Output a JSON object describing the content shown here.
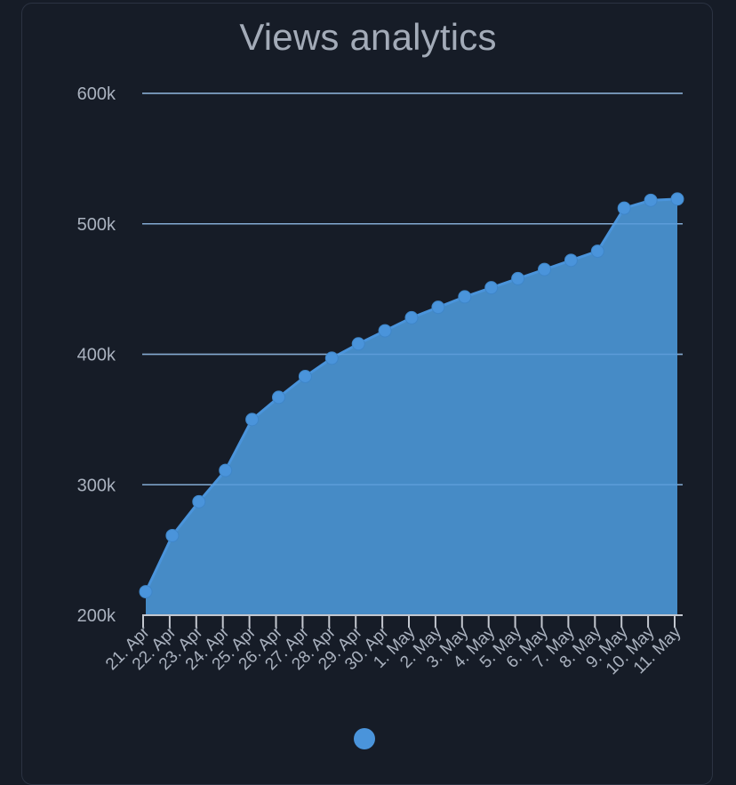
{
  "chart_data": {
    "type": "area",
    "title": "Views analytics",
    "categories": [
      "21. Apr",
      "22. Apr",
      "23. Apr",
      "24. Apr",
      "25. Apr",
      "26. Apr",
      "27. Apr",
      "28. Apr",
      "29. Apr",
      "30. Apr",
      "1. May",
      "2. May",
      "3. May",
      "4. May",
      "5. May",
      "6. May",
      "7. May",
      "8. May",
      "9. May",
      "10. May",
      "11. May"
    ],
    "values": [
      218000,
      261000,
      287000,
      311000,
      350000,
      367000,
      383000,
      397000,
      408000,
      418000,
      428000,
      436000,
      444000,
      451000,
      458000,
      465000,
      472000,
      479000,
      512000,
      518000,
      519000
    ],
    "ylim": [
      200000,
      600000
    ],
    "yticks": [
      200000,
      300000,
      400000,
      500000,
      600000
    ],
    "ytick_labels": [
      "200k",
      "300k",
      "400k",
      "500k",
      "600k"
    ],
    "grid": true,
    "legend": "bottom-center",
    "colors": {
      "line": "#4a94db",
      "fill": "#468bc6",
      "point": "#4a94db",
      "grid": "#c3c7cf",
      "axis": "#c3c7cf"
    }
  }
}
